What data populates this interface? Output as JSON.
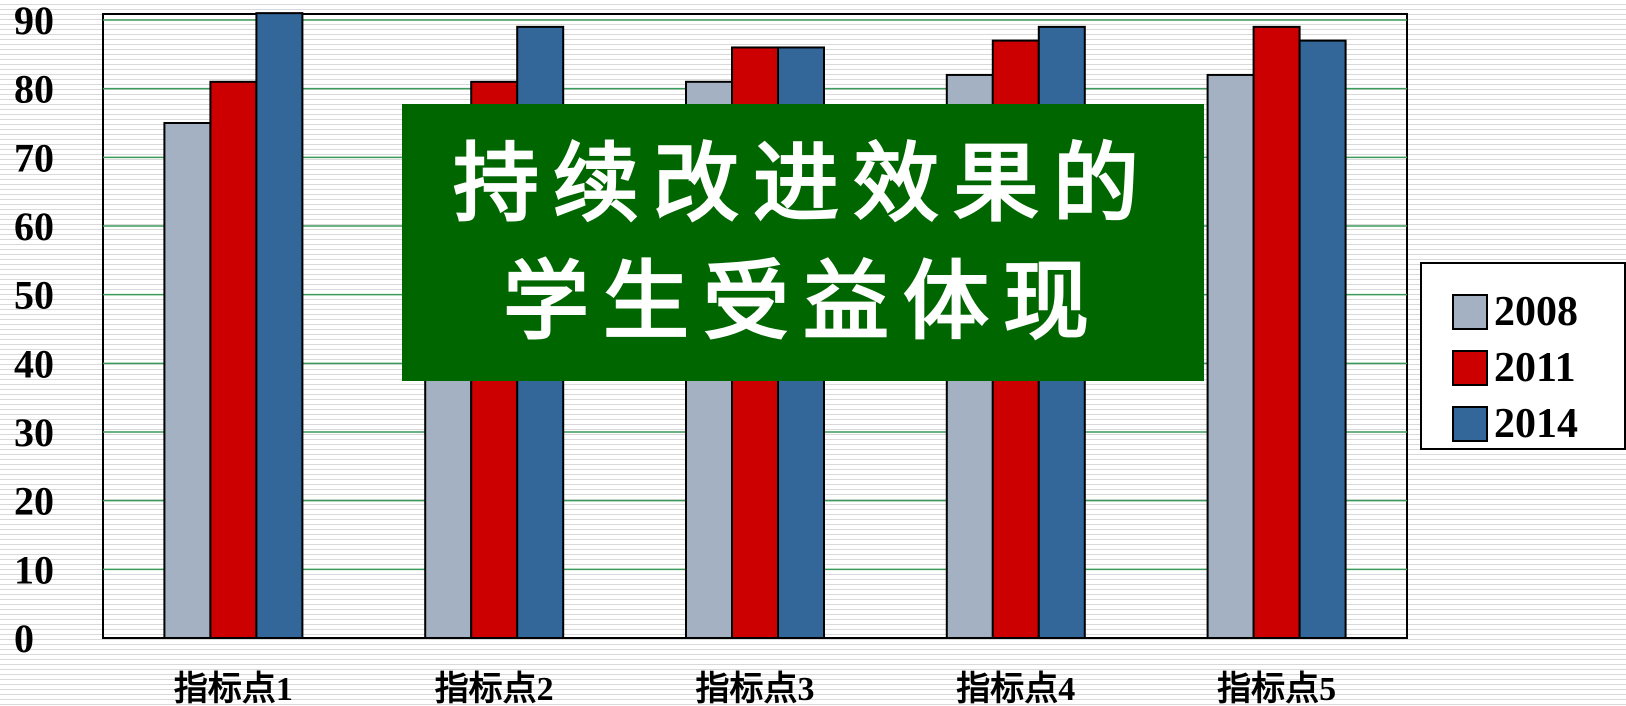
{
  "chart_data": {
    "type": "bar",
    "categories": [
      "指标点1",
      "指标点2",
      "指标点3",
      "指标点4",
      "指标点5"
    ],
    "series": [
      {
        "name": "2008",
        "color": "#a3b1c2",
        "values": [
          75,
          70,
          81,
          82,
          82
        ]
      },
      {
        "name": "2011",
        "color": "#cc0000",
        "values": [
          81,
          81,
          86,
          87,
          89
        ]
      },
      {
        "name": "2014",
        "color": "#336699",
        "values": [
          91,
          89,
          86,
          89,
          87
        ]
      }
    ],
    "ylim": [
      0,
      90
    ],
    "yticks": [
      "0",
      "10",
      "20",
      "30",
      "40",
      "50",
      "60",
      "70",
      "80",
      "90"
    ],
    "grid": true,
    "legend_position": "right"
  },
  "overlay": {
    "line1": "持续改进效果的",
    "line2": "学生受益体现",
    "background": "#006600"
  },
  "legend": {
    "items": [
      {
        "label": "2008",
        "color": "#a3b1c2"
      },
      {
        "label": "2011",
        "color": "#cc0000"
      },
      {
        "label": "2014",
        "color": "#336699"
      }
    ]
  }
}
